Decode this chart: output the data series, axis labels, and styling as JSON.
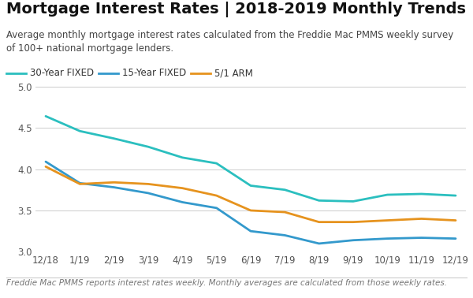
{
  "title": "Mortgage Interest Rates | 2018-2019 Monthly Trends",
  "subtitle": "Average monthly mortgage interest rates calculated from the Freddie Mac PMMS weekly survey\nof 100+ national mortgage lenders.",
  "footer": "Freddie Mac PMMS reports interest rates weekly. Monthly averages are calculated from those weekly rates.",
  "x_labels": [
    "12/18",
    "1/19",
    "2/19",
    "3/19",
    "4/19",
    "5/19",
    "6/19",
    "7/19",
    "8/19",
    "9/19",
    "10/19",
    "11/19",
    "12/19"
  ],
  "series_30yr": [
    4.64,
    4.46,
    4.37,
    4.27,
    4.14,
    4.07,
    3.8,
    3.75,
    3.62,
    3.61,
    3.69,
    3.7,
    3.68
  ],
  "series_15yr": [
    4.09,
    3.83,
    3.78,
    3.71,
    3.6,
    3.53,
    3.25,
    3.2,
    3.1,
    3.14,
    3.16,
    3.17,
    3.16
  ],
  "series_arm": [
    4.03,
    3.82,
    3.84,
    3.82,
    3.77,
    3.68,
    3.5,
    3.48,
    3.36,
    3.36,
    3.38,
    3.4,
    3.38
  ],
  "color_30yr": "#2bbfbf",
  "color_15yr": "#3399cc",
  "color_arm": "#e6931e",
  "ylim": [
    3.0,
    5.0
  ],
  "yticks": [
    3.0,
    3.5,
    4.0,
    4.5,
    5.0
  ],
  "legend_30yr": "30-Year FIXED",
  "legend_15yr": "15-Year FIXED",
  "legend_arm": "5/1 ARM",
  "bg_color": "#ffffff",
  "grid_color": "#cccccc",
  "title_fontsize": 14,
  "subtitle_fontsize": 8.5,
  "footer_fontsize": 7.5,
  "axis_fontsize": 8.5,
  "legend_fontsize": 8.5,
  "line_width": 2.0
}
